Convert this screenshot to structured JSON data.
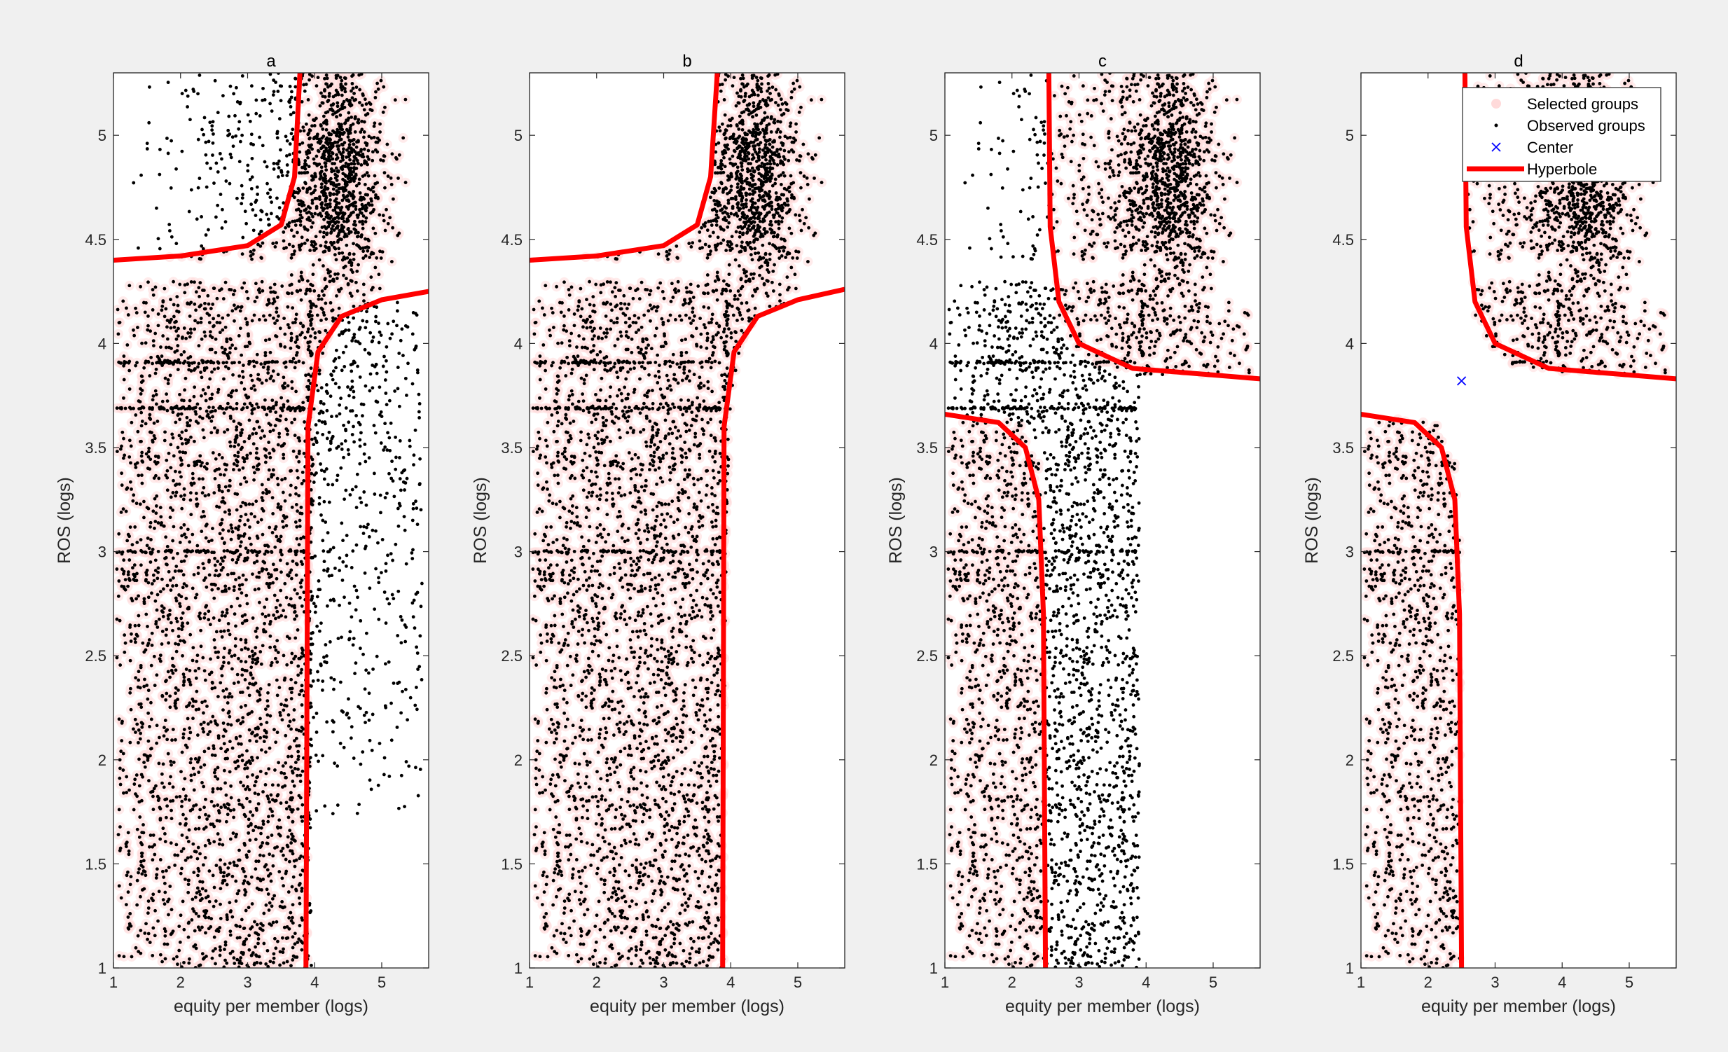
{
  "chart_data": [
    {
      "type": "scatter",
      "title": "a",
      "xlabel": "equity per member (logs)",
      "ylabel": "ROS (logs)",
      "xlim": [
        1,
        5.7
      ],
      "ylim": [
        1,
        5.3
      ],
      "xticks": [
        1,
        2,
        3,
        4,
        5
      ],
      "yticks": [
        1,
        1.5,
        2,
        2.5,
        3,
        3.5,
        4,
        4.5,
        5
      ],
      "hyperbole": {
        "center": [
          3.87,
          4.32
        ],
        "branch_lower_left": [
          [
            1.0,
            4.4
          ],
          [
            2.0,
            4.42
          ],
          [
            3.0,
            4.47
          ],
          [
            3.5,
            4.57
          ],
          [
            3.7,
            4.8
          ],
          [
            3.78,
            5.3
          ]
        ],
        "branch_upper_right": [
          [
            3.87,
            1.0
          ],
          [
            3.9,
            3.6
          ],
          [
            4.05,
            3.96
          ],
          [
            4.4,
            4.13
          ],
          [
            5.0,
            4.21
          ],
          [
            5.7,
            4.25
          ]
        ]
      },
      "selected_groups_region": "lower-left and upper-right of hyperbole",
      "series": [
        {
          "name": "Selected groups",
          "color": "#ffdada"
        },
        {
          "name": "Observed groups",
          "color": "#000000"
        }
      ]
    },
    {
      "type": "scatter",
      "title": "b",
      "xlabel": "equity per member (logs)",
      "ylabel": "ROS (logs)",
      "xlim": [
        1,
        5.7
      ],
      "ylim": [
        1,
        5.3
      ],
      "xticks": [
        1,
        2,
        3,
        4,
        5
      ],
      "yticks": [
        1,
        1.5,
        2,
        2.5,
        3,
        3.5,
        4,
        4.5,
        5
      ],
      "hyperbole": {
        "center": [
          3.86,
          4.32
        ],
        "branch_upper_left": [
          [
            1.0,
            4.4
          ],
          [
            2.0,
            4.42
          ],
          [
            3.0,
            4.47
          ],
          [
            3.5,
            4.57
          ],
          [
            3.7,
            4.8
          ],
          [
            3.8,
            5.3
          ]
        ],
        "branch_lower_right": [
          [
            3.88,
            1.0
          ],
          [
            3.9,
            3.6
          ],
          [
            4.05,
            3.96
          ],
          [
            4.4,
            4.13
          ],
          [
            5.0,
            4.21
          ],
          [
            5.7,
            4.26
          ]
        ]
      },
      "selected_groups_region": "between branches",
      "series": [
        {
          "name": "Selected groups",
          "color": "#ffdada"
        },
        {
          "name": "Observed groups",
          "color": "#000000"
        }
      ]
    },
    {
      "type": "scatter",
      "title": "c",
      "xlabel": "equity per member (logs)",
      "ylabel": "ROS (logs)",
      "xlim": [
        1,
        5.7
      ],
      "ylim": [
        1,
        5.3
      ],
      "xticks": [
        1,
        2,
        3,
        4,
        5
      ],
      "yticks": [
        1,
        1.5,
        2,
        2.5,
        3,
        3.5,
        4,
        4.5,
        5
      ],
      "hyperbole": {
        "center": [
          2.5,
          3.82
        ],
        "branch_lower_left": [
          [
            1.0,
            3.66
          ],
          [
            1.8,
            3.62
          ],
          [
            2.2,
            3.5
          ],
          [
            2.4,
            3.25
          ],
          [
            2.47,
            2.7
          ],
          [
            2.5,
            1.0
          ]
        ],
        "branch_upper_right": [
          [
            2.55,
            5.3
          ],
          [
            2.57,
            4.56
          ],
          [
            2.7,
            4.2
          ],
          [
            3.0,
            4.0
          ],
          [
            3.8,
            3.88
          ],
          [
            5.7,
            3.83
          ]
        ]
      },
      "selected_groups_region": "lower-left and upper-right of hyperbole",
      "series": [
        {
          "name": "Selected groups",
          "color": "#ffdada"
        },
        {
          "name": "Observed groups",
          "color": "#000000"
        }
      ]
    },
    {
      "type": "scatter",
      "title": "d",
      "xlabel": "equity per member (logs)",
      "ylabel": "ROS (logs)",
      "xlim": [
        1,
        5.7
      ],
      "ylim": [
        1,
        5.3
      ],
      "xticks": [
        1,
        2,
        3,
        4,
        5
      ],
      "yticks": [
        1,
        1.5,
        2,
        2.5,
        3,
        3.5,
        4,
        4.5,
        5
      ],
      "center_point": [
        2.5,
        3.82
      ],
      "hyperbole": {
        "center": [
          2.5,
          3.82
        ],
        "branch_lower_left": [
          [
            1.0,
            3.66
          ],
          [
            1.8,
            3.62
          ],
          [
            2.2,
            3.5
          ],
          [
            2.4,
            3.25
          ],
          [
            2.47,
            2.7
          ],
          [
            2.5,
            1.0
          ]
        ],
        "branch_upper_right": [
          [
            2.55,
            5.3
          ],
          [
            2.57,
            4.56
          ],
          [
            2.7,
            4.2
          ],
          [
            3.0,
            4.0
          ],
          [
            3.8,
            3.88
          ],
          [
            5.7,
            3.83
          ]
        ]
      },
      "selected_groups_region": "lower-left and upper-right of hyperbole",
      "legend": {
        "placement": "top-right",
        "entries": [
          "Selected groups",
          "Observed groups",
          "Center",
          "Hyperbole"
        ]
      },
      "series": [
        {
          "name": "Selected groups",
          "color": "#ffdada"
        },
        {
          "name": "Observed groups",
          "color": "#000000"
        },
        {
          "name": "Center",
          "color": "#0000ff"
        },
        {
          "name": "Hyperbole",
          "color": "#ff0000"
        }
      ]
    }
  ]
}
